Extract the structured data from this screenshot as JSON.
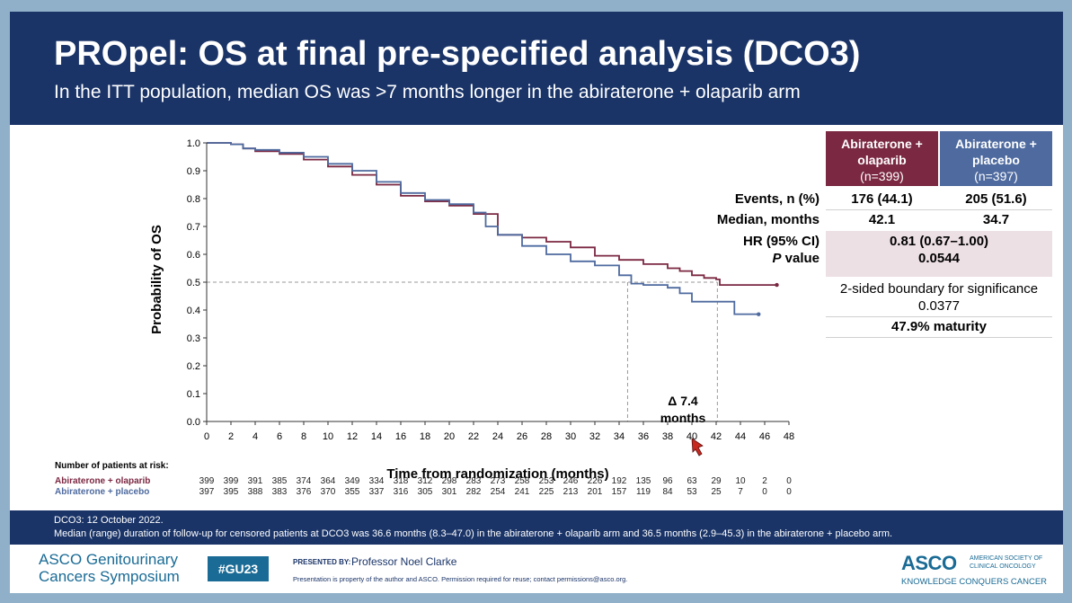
{
  "header": {
    "title": "PROpel: OS at final pre-specified analysis (DCO3)",
    "subtitle": "In the ITT population, median OS was >7 months longer in the abiraterone + olaparib arm"
  },
  "chart_data": {
    "type": "line",
    "title": "",
    "xlabel": "Time from randomization (months)",
    "ylabel": "Probability of OS",
    "xlim": [
      0,
      48
    ],
    "ylim": [
      0,
      1
    ],
    "x_ticks": [
      "0",
      "2",
      "4",
      "6",
      "8",
      "10",
      "12",
      "14",
      "16",
      "18",
      "20",
      "22",
      "24",
      "26",
      "28",
      "30",
      "32",
      "34",
      "36",
      "38",
      "40",
      "42",
      "44",
      "46",
      "48"
    ],
    "y_ticks": [
      "0.0",
      "0.1",
      "0.2",
      "0.3",
      "0.4",
      "0.5",
      "0.6",
      "0.7",
      "0.8",
      "0.9",
      "1.0"
    ],
    "series": [
      {
        "name": "Abiraterone + olaparib",
        "color": "#7b2842",
        "x": [
          0,
          2,
          3,
          4,
          6,
          8,
          10,
          12,
          14,
          16,
          18,
          20,
          22,
          24,
          26,
          28,
          30,
          32,
          34,
          36,
          38,
          39,
          40,
          41,
          42,
          42.3,
          44,
          46,
          47
        ],
        "y": [
          1.0,
          0.995,
          0.98,
          0.97,
          0.96,
          0.94,
          0.915,
          0.885,
          0.85,
          0.81,
          0.79,
          0.775,
          0.745,
          0.67,
          0.66,
          0.645,
          0.625,
          0.595,
          0.58,
          0.565,
          0.55,
          0.54,
          0.525,
          0.515,
          0.51,
          0.49,
          0.49,
          0.49,
          0.49
        ]
      },
      {
        "name": "Abiraterone + placebo",
        "color": "#4e6a9f",
        "x": [
          0,
          2,
          3,
          4,
          6,
          8,
          10,
          12,
          14,
          16,
          18,
          20,
          22,
          23,
          24,
          26,
          28,
          30,
          32,
          34,
          35,
          36,
          38,
          39,
          40,
          42,
          43,
          43.5,
          45.5
        ],
        "y": [
          1.0,
          0.995,
          0.98,
          0.975,
          0.965,
          0.95,
          0.925,
          0.9,
          0.86,
          0.82,
          0.795,
          0.78,
          0.75,
          0.7,
          0.67,
          0.63,
          0.6,
          0.575,
          0.56,
          0.525,
          0.495,
          0.49,
          0.48,
          0.46,
          0.43,
          0.43,
          0.43,
          0.385,
          0.385
        ]
      }
    ],
    "reference_lines": [
      {
        "axis": "y",
        "value": 0.5,
        "style": "dashed"
      },
      {
        "axis": "x",
        "value": 34.7,
        "style": "dashed"
      },
      {
        "axis": "x",
        "value": 42.1,
        "style": "dashed"
      }
    ],
    "annotation": {
      "line1": "Δ 7.4",
      "line2": "months"
    },
    "legend": "none"
  },
  "stats_table": {
    "col1": {
      "line1": "Abiraterone +",
      "line2": "olaparib",
      "n": "(n=399)",
      "color": "#7b2842"
    },
    "col2": {
      "line1": "Abiraterone +",
      "line2": "placebo",
      "n": "(n=397)",
      "color": "#4e6a9f"
    },
    "rows": [
      {
        "label": "Events, n (%)",
        "v1": "176 (44.1)",
        "v2": "205 (51.6)"
      },
      {
        "label": "Median, months",
        "v1": "42.1",
        "v2": "34.7"
      }
    ],
    "hr_label": "HR (95% CI)",
    "hr_value": "0.81 (0.67–1.00)",
    "p_label_italic": "P",
    "p_label_rest": " value",
    "p_value": "0.0544",
    "boundary_line1": "2-sided boundary for significance",
    "boundary_line2": "0.0377",
    "maturity": "47.9% maturity",
    "highlight_color": "#ede0e5"
  },
  "risk_table": {
    "title": "Number of patients at risk:",
    "rows": [
      {
        "label": "Abiraterone + olaparib",
        "color": "#7b2842",
        "values": [
          "399",
          "399",
          "391",
          "385",
          "374",
          "364",
          "349",
          "334",
          "318",
          "312",
          "298",
          "283",
          "273",
          "258",
          "253",
          "246",
          "226",
          "192",
          "135",
          "96",
          "63",
          "29",
          "10",
          "2",
          "0"
        ]
      },
      {
        "label": "Abiraterone + placebo",
        "color": "#4e6a9f",
        "values": [
          "397",
          "395",
          "388",
          "383",
          "376",
          "370",
          "355",
          "337",
          "316",
          "305",
          "301",
          "282",
          "254",
          "241",
          "225",
          "213",
          "201",
          "157",
          "119",
          "84",
          "53",
          "25",
          "7",
          "0",
          "0"
        ]
      }
    ]
  },
  "footer": {
    "line1": "DCO3: 12 October 2022.",
    "line2": "Median (range) duration of follow-up for censored patients at DCO3 was 36.6 months (8.3–47.0) in the abiraterone + olaparib arm and 36.5 months (2.9–45.3) in the abiraterone + placebo arm."
  },
  "bottom": {
    "asco_gu_line1": "ASCO Genitourinary",
    "asco_gu_line2": "Cancers Symposium",
    "hashtag": "#GU23",
    "presented_by_label": "PRESENTED BY:",
    "presenter": "Professor Noel Clarke",
    "disclaimer": "Presentation is property of the author and ASCO. Permission required for reuse; contact permissions@asco.org.",
    "asco_logo": "ASCO",
    "asco_org_line1": "AMERICAN SOCIETY OF",
    "asco_org_line2": "CLINICAL ONCOLOGY",
    "tagline": "KNOWLEDGE CONQUERS CANCER",
    "brand_color": "#1a6b95"
  }
}
